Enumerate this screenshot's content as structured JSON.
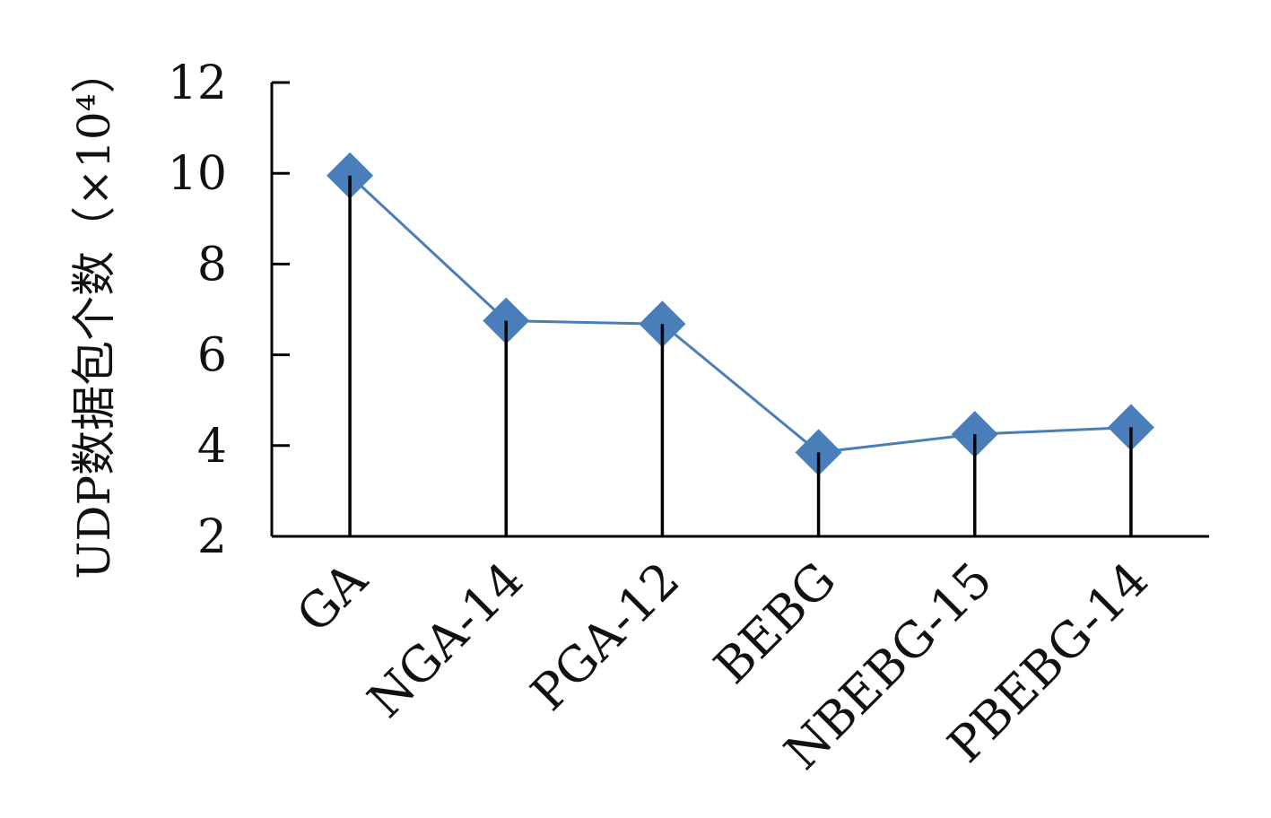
{
  "chart_data": {
    "type": "line",
    "ylabel": "UDP数据包个数（×10⁴）",
    "xlabel": "",
    "categories": [
      "GA",
      "NGA-14",
      "PGA-12",
      "BEBG",
      "NBEBG-15",
      "PBEBG-14"
    ],
    "series": [
      {
        "values": [
          9.95,
          6.75,
          6.68,
          3.85,
          4.25,
          4.4
        ]
      }
    ],
    "ylim": [
      2,
      12
    ],
    "yticks": [
      2,
      4,
      6,
      8,
      10,
      12
    ],
    "drop_lines": true,
    "marker": "diamond",
    "grid": false,
    "colors": {
      "series": "#4a7ebb",
      "axis": "#000000"
    }
  }
}
